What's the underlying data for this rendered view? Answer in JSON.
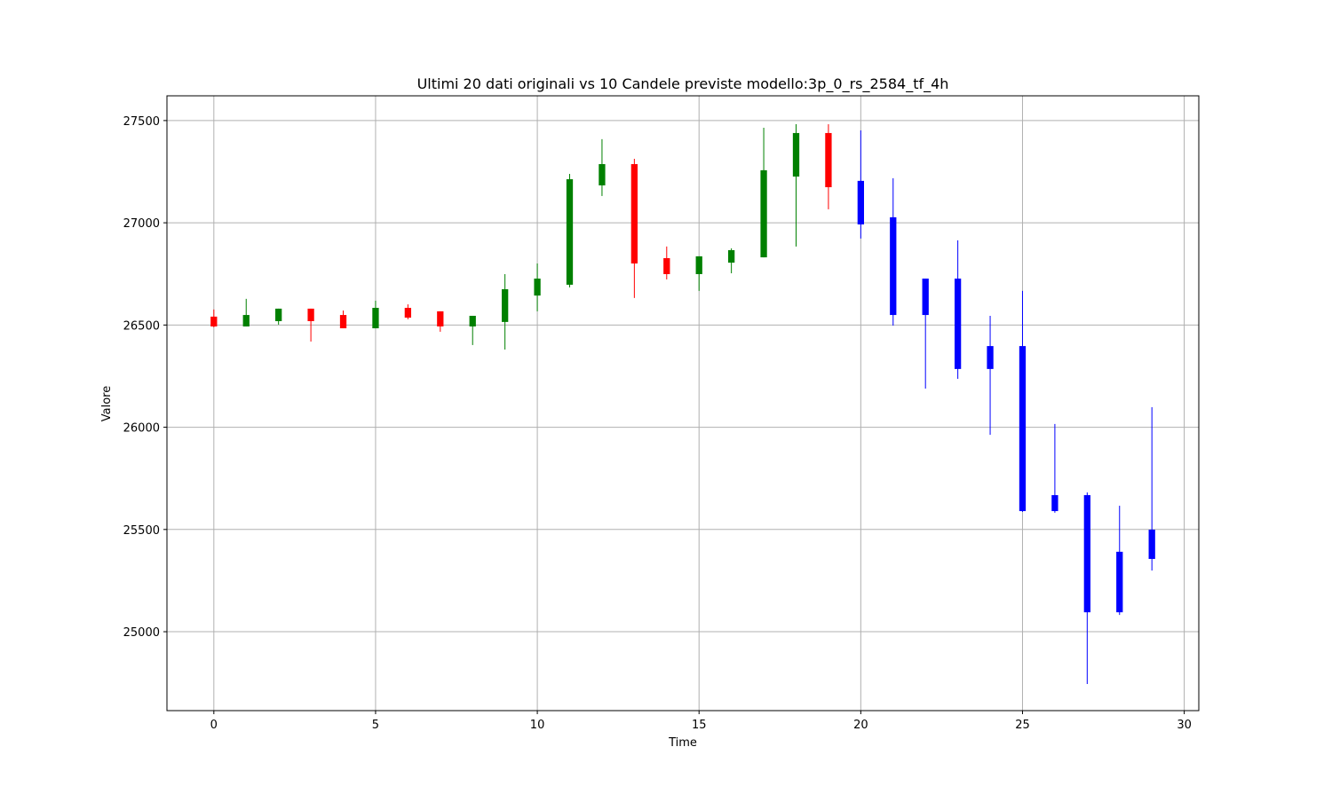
{
  "chart_data": {
    "type": "candlestick",
    "title": "Ultimi 20 dati originali vs 10 Candele previste modello:3p_0_rs_2584_tf_4h",
    "xlabel": "Time",
    "ylabel": "Valore",
    "x": [
      0,
      1,
      2,
      3,
      4,
      5,
      6,
      7,
      8,
      9,
      10,
      11,
      12,
      13,
      14,
      15,
      16,
      17,
      18,
      19,
      20,
      21,
      22,
      23,
      24,
      25,
      26,
      27,
      28,
      29
    ],
    "open": [
      26541,
      26493,
      26519,
      26580,
      26549,
      26484,
      26584,
      26567,
      26493,
      26515,
      26644,
      26697,
      27183,
      27287,
      26827,
      26749,
      26805,
      26831,
      27226,
      27439,
      27205,
      27027,
      26727,
      26727,
      26397,
      26397,
      25668,
      25668,
      25391,
      25499
    ],
    "high": [
      26576,
      26628,
      26580,
      26580,
      26571,
      26619,
      26601,
      26567,
      26545,
      26749,
      26801,
      27239,
      27409,
      27313,
      26884,
      26836,
      26875,
      27465,
      27482,
      27482,
      27452,
      27218,
      26727,
      26914,
      26545,
      26667,
      26016,
      25681,
      25616,
      26098
    ],
    "low": [
      26489,
      26493,
      26502,
      26419,
      26484,
      26484,
      26528,
      26467,
      26402,
      26380,
      26567,
      26684,
      27131,
      26632,
      26723,
      26667,
      26753,
      26831,
      26884,
      27066,
      26923,
      26497,
      26189,
      26237,
      25963,
      25586,
      25582,
      24744,
      25082,
      25299
    ],
    "close": [
      26493,
      26549,
      26580,
      26519,
      26484,
      26584,
      26536,
      26493,
      26545,
      26675,
      26727,
      27213,
      27287,
      26801,
      26749,
      26836,
      26866,
      27257,
      27439,
      27174,
      26992,
      26549,
      26549,
      26285,
      26285,
      25590,
      25590,
      25095,
      25095,
      25356
    ],
    "colors": [
      "red",
      "green",
      "green",
      "red",
      "red",
      "green",
      "red",
      "red",
      "green",
      "green",
      "green",
      "green",
      "green",
      "red",
      "red",
      "green",
      "green",
      "green",
      "green",
      "red",
      "blue",
      "blue",
      "blue",
      "blue",
      "blue",
      "blue",
      "blue",
      "blue",
      "blue",
      "blue"
    ],
    "xlim": [
      -1.45,
      30.45
    ],
    "ylim": [
      24614,
      27621
    ],
    "xticks": [
      0,
      5,
      10,
      15,
      20,
      25,
      30
    ],
    "yticks": [
      25000,
      25500,
      26000,
      26500,
      27000,
      27500
    ],
    "grid": true
  }
}
